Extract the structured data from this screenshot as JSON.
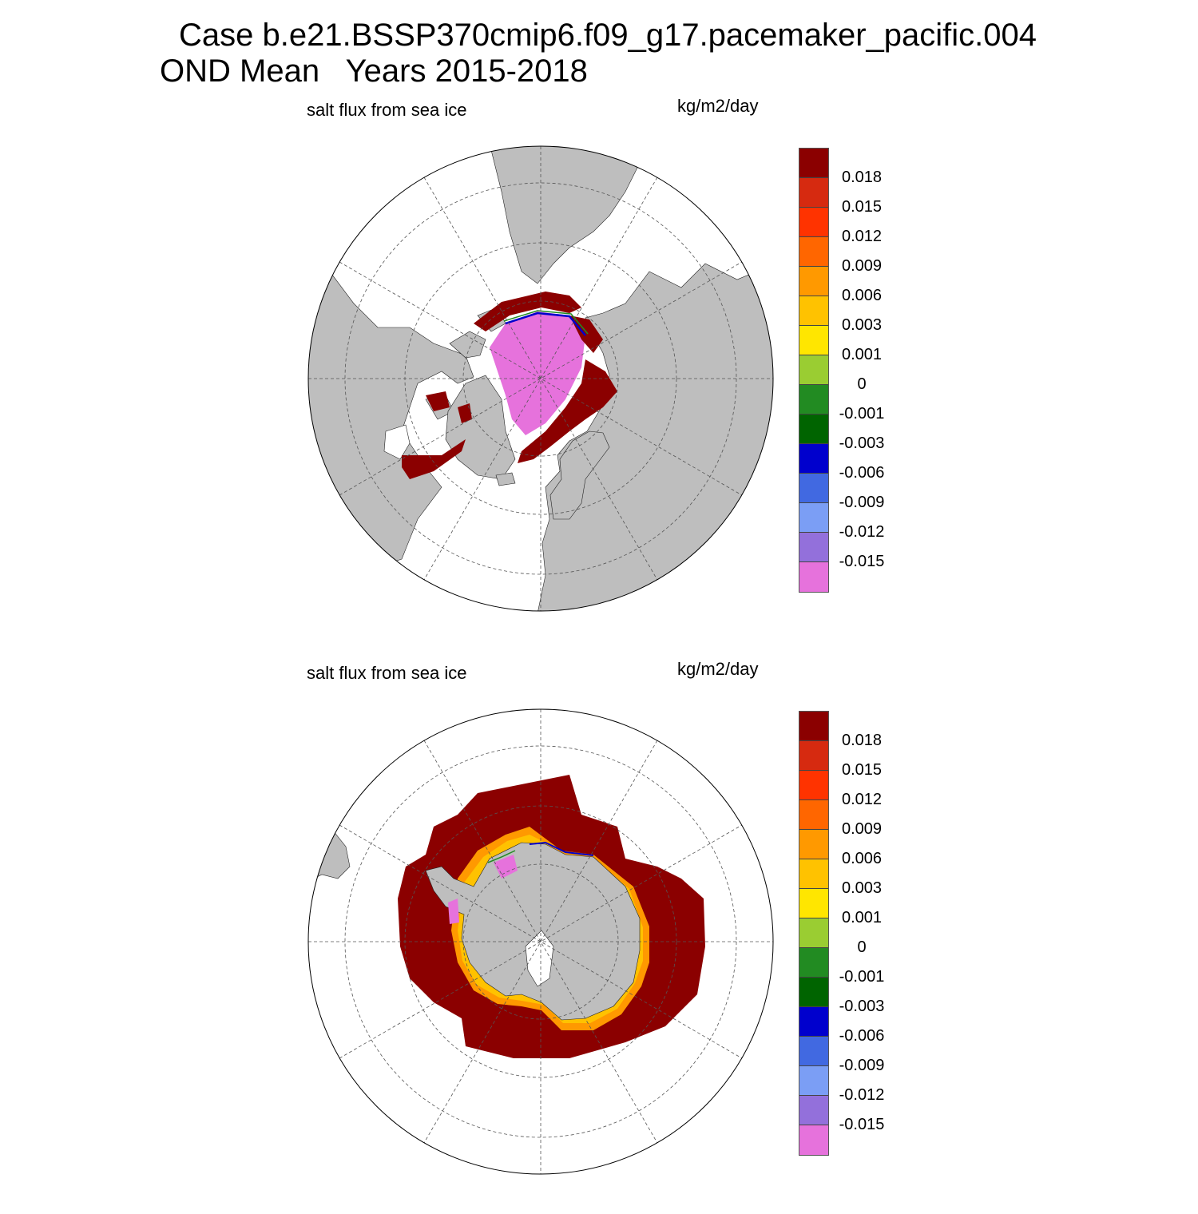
{
  "figure": {
    "title_line1": "Case b.e21.BSSP370cmip6.f09_g17.pacemaker_pacific.004",
    "title_line2": "OND Mean   Years 2015-2018"
  },
  "panels": [
    {
      "id": "north",
      "variable": "salt flux from sea ice",
      "units": "kg/m2/day",
      "hemisphere": "north"
    },
    {
      "id": "south",
      "variable": "salt flux from sea ice",
      "units": "kg/m2/day",
      "hemisphere": "south"
    }
  ],
  "colorbar": {
    "tick_labels": [
      "0.018",
      "0.015",
      "0.012",
      "0.009",
      "0.006",
      "0.003",
      "0.001",
      "0",
      "-0.001",
      "-0.003",
      "-0.006",
      "-0.009",
      "-0.012",
      "-0.015"
    ],
    "colors": [
      "#8b0000",
      "#d62a10",
      "#ff3300",
      "#ff6600",
      "#ff9900",
      "#ffc200",
      "#ffe600",
      "#9acd32",
      "#228b22",
      "#006400",
      "#0000cd",
      "#4169e1",
      "#7b9ef5",
      "#9370db",
      "#e672dc"
    ]
  },
  "map_colors": {
    "land": "#bebebe",
    "ocean": "#ffffff",
    "grid": "#555555",
    "high_flux": "#8b0000",
    "strong_rejection": "#e672dc"
  }
}
